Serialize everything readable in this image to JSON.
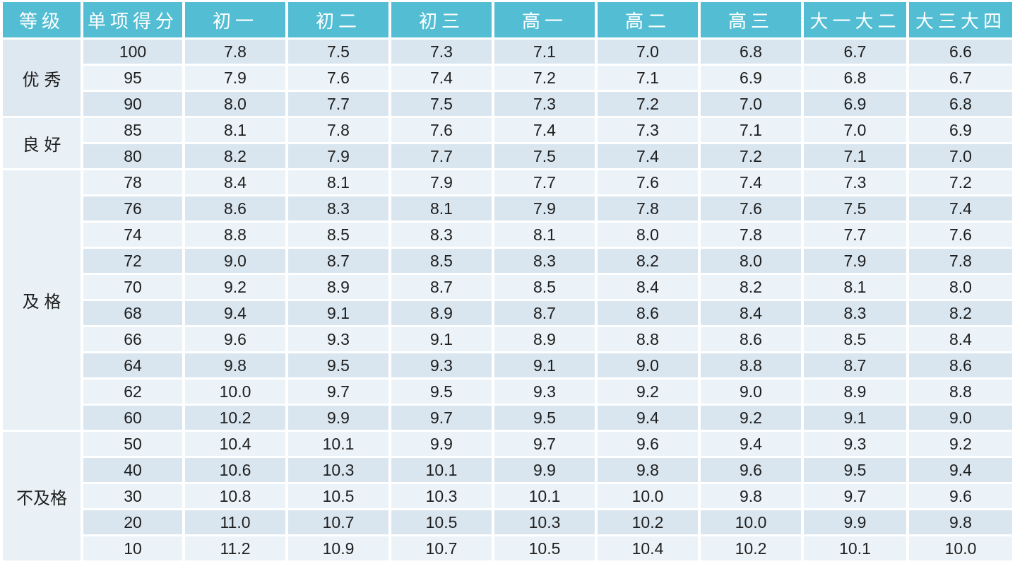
{
  "colors": {
    "header_bg": "#53bed3",
    "header_text": "#ffffff",
    "row_dark": "#d9e6f0",
    "row_light": "#ebf3f8",
    "group_dark": "#dee8f0",
    "group_light": "#e9f1f6",
    "text": "#1e1e1e",
    "background": "#ffffff"
  },
  "chart_data": {
    "type": "table",
    "columns": [
      "等级",
      "单项得分",
      "初一",
      "初二",
      "初三",
      "高一",
      "高二",
      "高三",
      "大一大二",
      "大三大四"
    ],
    "groups": [
      {
        "label": "优 秀",
        "shade": "dark",
        "rows": [
          {
            "score": "100",
            "values": [
              "7.8",
              "7.5",
              "7.3",
              "7.1",
              "7.0",
              "6.8",
              "6.7",
              "6.6"
            ]
          },
          {
            "score": "95",
            "values": [
              "7.9",
              "7.6",
              "7.4",
              "7.2",
              "7.1",
              "6.9",
              "6.8",
              "6.7"
            ]
          },
          {
            "score": "90",
            "values": [
              "8.0",
              "7.7",
              "7.5",
              "7.3",
              "7.2",
              "7.0",
              "6.9",
              "6.8"
            ]
          }
        ]
      },
      {
        "label": "良 好",
        "shade": "light",
        "rows": [
          {
            "score": "85",
            "values": [
              "8.1",
              "7.8",
              "7.6",
              "7.4",
              "7.3",
              "7.1",
              "7.0",
              "6.9"
            ]
          },
          {
            "score": "80",
            "values": [
              "8.2",
              "7.9",
              "7.7",
              "7.5",
              "7.4",
              "7.2",
              "7.1",
              "7.0"
            ]
          }
        ]
      },
      {
        "label": "及 格",
        "shade": "light",
        "rows": [
          {
            "score": "78",
            "values": [
              "8.4",
              "8.1",
              "7.9",
              "7.7",
              "7.6",
              "7.4",
              "7.3",
              "7.2"
            ]
          },
          {
            "score": "76",
            "values": [
              "8.6",
              "8.3",
              "8.1",
              "7.9",
              "7.8",
              "7.6",
              "7.5",
              "7.4"
            ]
          },
          {
            "score": "74",
            "values": [
              "8.8",
              "8.5",
              "8.3",
              "8.1",
              "8.0",
              "7.8",
              "7.7",
              "7.6"
            ]
          },
          {
            "score": "72",
            "values": [
              "9.0",
              "8.7",
              "8.5",
              "8.3",
              "8.2",
              "8.0",
              "7.9",
              "7.8"
            ]
          },
          {
            "score": "70",
            "values": [
              "9.2",
              "8.9",
              "8.7",
              "8.5",
              "8.4",
              "8.2",
              "8.1",
              "8.0"
            ]
          },
          {
            "score": "68",
            "values": [
              "9.4",
              "9.1",
              "8.9",
              "8.7",
              "8.6",
              "8.4",
              "8.3",
              "8.2"
            ]
          },
          {
            "score": "66",
            "values": [
              "9.6",
              "9.3",
              "9.1",
              "8.9",
              "8.8",
              "8.6",
              "8.5",
              "8.4"
            ]
          },
          {
            "score": "64",
            "values": [
              "9.8",
              "9.5",
              "9.3",
              "9.1",
              "9.0",
              "8.8",
              "8.7",
              "8.6"
            ]
          },
          {
            "score": "62",
            "values": [
              "10.0",
              "9.7",
              "9.5",
              "9.3",
              "9.2",
              "9.0",
              "8.9",
              "8.8"
            ]
          },
          {
            "score": "60",
            "values": [
              "10.2",
              "9.9",
              "9.7",
              "9.5",
              "9.4",
              "9.2",
              "9.1",
              "9.0"
            ]
          }
        ]
      },
      {
        "label": "不及格",
        "shade": "light",
        "rows": [
          {
            "score": "50",
            "values": [
              "10.4",
              "10.1",
              "9.9",
              "9.7",
              "9.6",
              "9.4",
              "9.3",
              "9.2"
            ]
          },
          {
            "score": "40",
            "values": [
              "10.6",
              "10.3",
              "10.1",
              "9.9",
              "9.8",
              "9.6",
              "9.5",
              "9.4"
            ]
          },
          {
            "score": "30",
            "values": [
              "10.8",
              "10.5",
              "10.3",
              "10.1",
              "10.0",
              "9.8",
              "9.7",
              "9.6"
            ]
          },
          {
            "score": "20",
            "values": [
              "11.0",
              "10.7",
              "10.5",
              "10.3",
              "10.2",
              "10.0",
              "9.9",
              "9.8"
            ]
          },
          {
            "score": "10",
            "values": [
              "11.2",
              "10.9",
              "10.7",
              "10.5",
              "10.4",
              "10.2",
              "10.1",
              "10.0"
            ]
          }
        ]
      }
    ]
  }
}
